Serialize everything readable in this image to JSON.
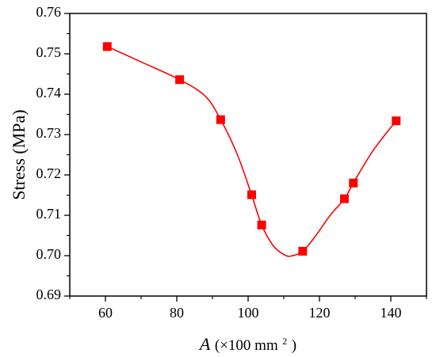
{
  "chart_data": {
    "type": "scatter",
    "title": "",
    "xlabel": {
      "symbol": "A",
      "unit_prefix": " (×100 mm",
      "unit_sup": "2",
      "unit_suffix": ")"
    },
    "ylabel": "Stress (MPa)",
    "xlim": [
      50,
      150
    ],
    "ylim": [
      0.69,
      0.76
    ],
    "xticks": [
      60,
      80,
      100,
      120,
      140
    ],
    "xtick_labels": [
      "60",
      "80",
      "100",
      "120",
      "140"
    ],
    "yticks": [
      0.69,
      0.7,
      0.71,
      0.72,
      0.73,
      0.74,
      0.75,
      0.76
    ],
    "ytick_labels": [
      "0.69",
      "0.70",
      "0.71",
      "0.72",
      "0.73",
      "0.74",
      "0.75",
      "0.76"
    ],
    "grid": false,
    "series": [
      {
        "marker": "square",
        "color": "#ff0000",
        "x": [
          60.5,
          80.8,
          92.3,
          101.0,
          103.8,
          115.3,
          127.0,
          129.5,
          141.5
        ],
        "y": [
          0.7518,
          0.7436,
          0.7337,
          0.7151,
          0.7076,
          0.7011,
          0.7141,
          0.718,
          0.7334
        ]
      }
    ],
    "fit_curve": {
      "color": "#ff0000",
      "x": [
        60.5,
        70.0,
        80.8,
        88.0,
        92.3,
        97.0,
        101.0,
        103.8,
        107.0,
        110.0,
        112.0,
        115.3,
        119.0,
        123.0,
        127.0,
        129.5,
        135.0,
        141.5
      ],
      "y": [
        0.7518,
        0.748,
        0.7436,
        0.7395,
        0.7337,
        0.725,
        0.715,
        0.7076,
        0.7025,
        0.7003,
        0.6999,
        0.7011,
        0.705,
        0.71,
        0.7141,
        0.718,
        0.726,
        0.7334
      ]
    }
  }
}
